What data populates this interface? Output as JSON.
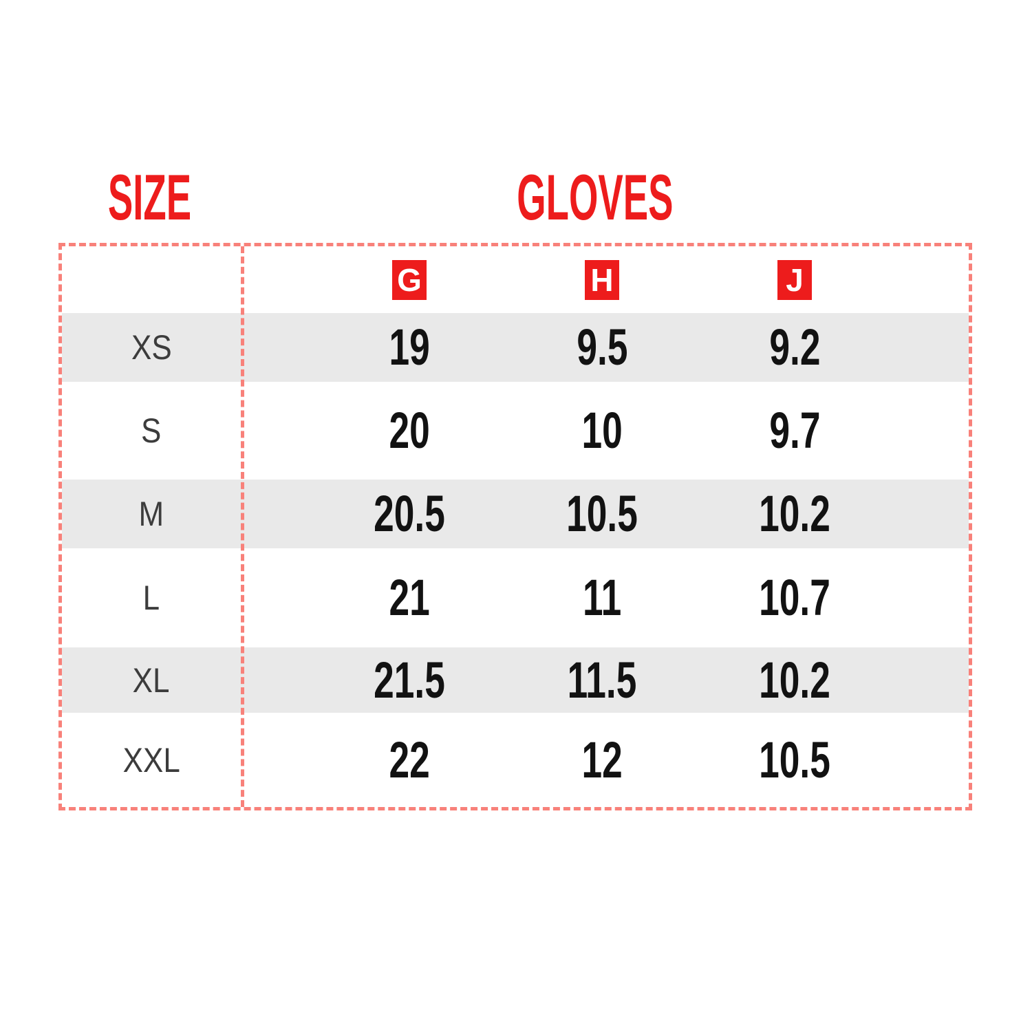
{
  "chart_data": {
    "type": "table",
    "title_left": "SIZE",
    "title_right": "GLOVES",
    "column_headers": [
      "G",
      "H",
      "J"
    ],
    "rows": [
      {
        "size": "XS",
        "values": [
          "19",
          "9.5",
          "9.2"
        ]
      },
      {
        "size": "S",
        "values": [
          "20",
          "10",
          "9.7"
        ]
      },
      {
        "size": "M",
        "values": [
          "20.5",
          "10.5",
          "10.2"
        ]
      },
      {
        "size": "L",
        "values": [
          "21",
          "11",
          "10.7"
        ]
      },
      {
        "size": "XL",
        "values": [
          "21.5",
          "11.5",
          "10.2"
        ]
      },
      {
        "size": "XXL",
        "values": [
          "22",
          "12",
          "10.5"
        ]
      }
    ],
    "layout_hints": {
      "shaded_rows": [
        "XS",
        "M",
        "XL"
      ],
      "border_style": "dashed",
      "grid": "outer border + single vertical divider after size column"
    }
  },
  "colors": {
    "accent_red": "#ed1c1c",
    "border_red": "#f8817a",
    "row_shade": "#e9e9e9",
    "value_text": "#121212",
    "label_text": "#3c3c3c"
  }
}
